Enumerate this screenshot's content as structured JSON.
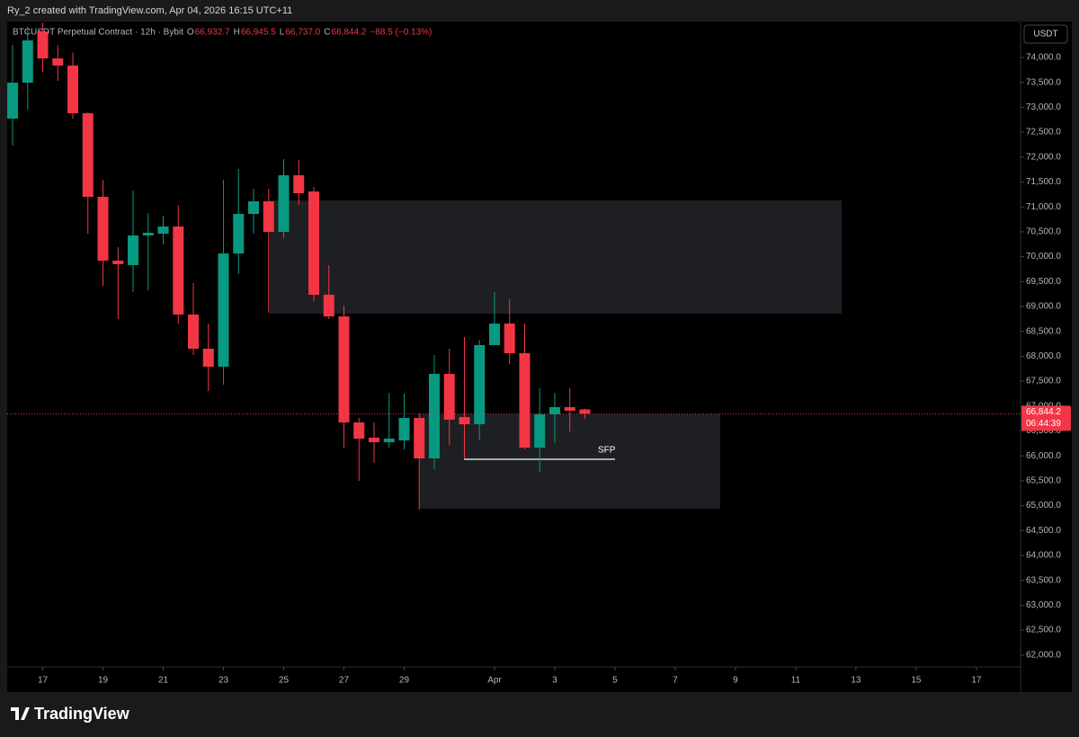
{
  "header": "Ry_2 created with TradingView.com, Apr 04, 2026 16:15 UTC+11",
  "chart_data": {
    "type": "candlestick",
    "title": "BTCUSDT Perpetual Contract · 12h · Bybit",
    "legend": [
      {
        "key": "O",
        "value": "66,932.7"
      },
      {
        "key": "H",
        "value": "66,945.5"
      },
      {
        "key": "L",
        "value": "66,737.0"
      },
      {
        "key": "C",
        "value": "66,844.2"
      }
    ],
    "change": "−88.5 (−0.13%)",
    "currency": "USDT",
    "up_color": "#089981",
    "down_color": "#f23645",
    "open": [
      72773,
      73495,
      74523,
      73982,
      73838,
      72881,
      71202,
      69921,
      69830,
      70426,
      70462,
      70606,
      68838,
      68152,
      67791,
      70065,
      70859,
      71112,
      70498,
      71635,
      71310,
      69235,
      68801,
      66671,
      66365,
      66274,
      66310,
      66761,
      65949,
      67646,
      66780,
      66635,
      68224,
      68657,
      68062,
      66165,
      66834,
      66978,
      66932.7
    ],
    "high": [
      74253,
      74614,
      74700,
      74250,
      74100,
      72900,
      71545,
      70191,
      71329,
      70877,
      70823,
      71040,
      69469,
      68657,
      71545,
      71762,
      71365,
      71365,
      71960,
      71942,
      71401,
      69830,
      69018,
      66762,
      66671,
      67267,
      67249,
      66852,
      68025,
      68152,
      68386,
      68332,
      69289,
      69145,
      68657,
      67358,
      67267,
      67358,
      66945.5
    ],
    "low": [
      72231,
      72953,
      73710,
      73530,
      72773,
      70462,
      69415,
      68747,
      69289,
      69325,
      70245,
      68657,
      68025,
      67303,
      67430,
      69650,
      70462,
      68873,
      70372,
      71040,
      69108,
      68747,
      66165,
      65498,
      65859,
      66165,
      66130,
      64920,
      65733,
      66220,
      65950,
      66310,
      68224,
      67845,
      66130,
      65679,
      66256,
      66490,
      66737.0
    ],
    "close": [
      73495,
      74343,
      73982,
      73838,
      72881,
      71202,
      69921,
      69850,
      70426,
      70480,
      70606,
      68838,
      68152,
      67791,
      70065,
      70859,
      71112,
      70498,
      71635,
      71274,
      69235,
      68801,
      66671,
      66346,
      66274,
      66346,
      66761,
      65949,
      67646,
      66726,
      66635,
      68224,
      68657,
      68062,
      66165,
      66834,
      66978,
      66906,
      66844.2
    ],
    "last_price": {
      "value": 66844.2,
      "label": "66,844.2"
    },
    "countdown": "06:44:39",
    "annotation": "SFP",
    "xlim": [
      -0.36,
      66.93
    ],
    "xticks": [
      {
        "value": 2,
        "label": "17"
      },
      {
        "value": 6,
        "label": "19"
      },
      {
        "value": 10,
        "label": "21"
      },
      {
        "value": 14,
        "label": "23"
      },
      {
        "value": 18,
        "label": "25"
      },
      {
        "value": 22,
        "label": "27"
      },
      {
        "value": 26,
        "label": "29"
      },
      {
        "value": 32,
        "label": "Apr"
      },
      {
        "value": 36,
        "label": "3"
      },
      {
        "value": 40,
        "label": "5"
      },
      {
        "value": 44,
        "label": "7"
      },
      {
        "value": 48,
        "label": "9"
      },
      {
        "value": 52,
        "label": "11"
      },
      {
        "value": 56,
        "label": "13"
      },
      {
        "value": 60,
        "label": "15"
      },
      {
        "value": 64,
        "label": "17"
      }
    ],
    "ylim": [
      61256,
      74722
    ],
    "yticks": [
      {
        "value": 74000,
        "label": "74,000.0"
      },
      {
        "value": 73500,
        "label": "73,500.0"
      },
      {
        "value": 73000,
        "label": "73,000.0"
      },
      {
        "value": 72500,
        "label": "72,500.0"
      },
      {
        "value": 72000,
        "label": "72,000.0"
      },
      {
        "value": 71500,
        "label": "71,500.0"
      },
      {
        "value": 71000,
        "label": "71,000.0"
      },
      {
        "value": 70500,
        "label": "70,500.0"
      },
      {
        "value": 70000,
        "label": "70,000.0"
      },
      {
        "value": 69500,
        "label": "69,500.0"
      },
      {
        "value": 69000,
        "label": "69,000.0"
      },
      {
        "value": 68500,
        "label": "68,500.0"
      },
      {
        "value": 68000,
        "label": "68,000.0"
      },
      {
        "value": 67500,
        "label": "67,500.0"
      },
      {
        "value": 67000,
        "label": "67,000.0"
      },
      {
        "value": 66500,
        "label": "66,500.0"
      },
      {
        "value": 66000,
        "label": "66,000.0"
      },
      {
        "value": 65500,
        "label": "65,500.0"
      },
      {
        "value": 65000,
        "label": "65,000.0"
      },
      {
        "value": 64500,
        "label": "64,500.0"
      },
      {
        "value": 64000,
        "label": "64,000.0"
      },
      {
        "value": 63500,
        "label": "63,500.0"
      },
      {
        "value": 63000,
        "label": "63,000.0"
      },
      {
        "value": 62500,
        "label": "62,500.0"
      },
      {
        "value": 62000,
        "label": "62,000.0"
      }
    ]
  },
  "brand": "TradingView"
}
